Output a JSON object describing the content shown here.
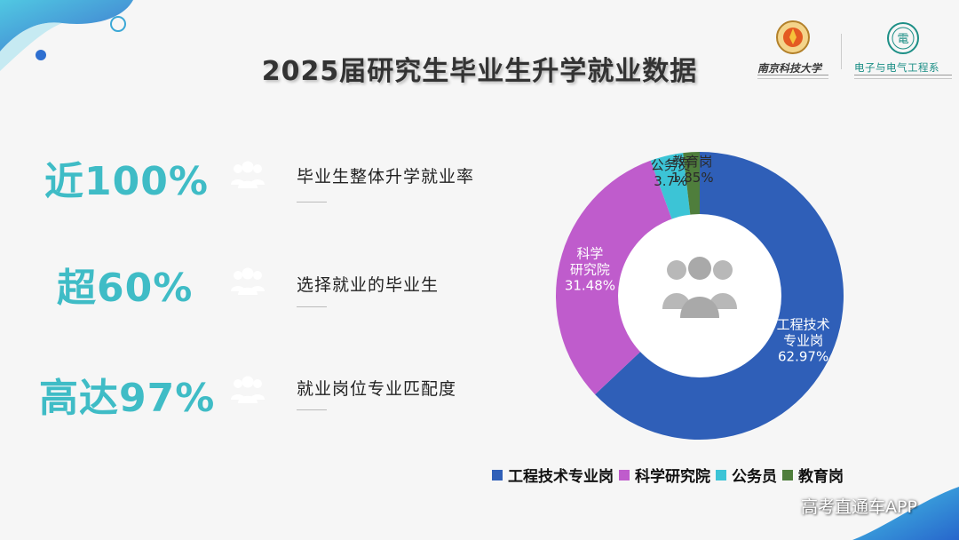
{
  "title": "2025届研究生毕业生升学就业数据",
  "logos": {
    "left": {
      "text": "南京科技大学"
    },
    "right": {
      "text": "电子与电气工程系"
    }
  },
  "stats": [
    {
      "value": "近100%",
      "label": "毕业生整体升学就业率",
      "color": "#2bb7c9",
      "icon": "people-icon"
    },
    {
      "value": "超60%",
      "label": "选择就业的毕业生",
      "color": "#2b73d9",
      "icon": "people-icon"
    },
    {
      "value": "高达97%",
      "label": "就业岗位专业匹配度",
      "color": "#b55ec8",
      "icon": "people-icon"
    }
  ],
  "chart_data": {
    "type": "pie",
    "donut": true,
    "center_icon": "people-icon",
    "series": [
      {
        "name": "工程技术专业岗",
        "value": 62.97,
        "color": "#2f5fb8",
        "label_lines": [
          "工程技术",
          "专业岗",
          "62.97%"
        ]
      },
      {
        "name": "科学研究院",
        "value": 31.48,
        "color": "#bf5ccc",
        "label_lines": [
          "科学",
          "研究院",
          "31.48%"
        ]
      },
      {
        "name": "公务员",
        "value": 3.7,
        "color": "#3cc4d6",
        "label_lines": [
          "公务员",
          "3.7%"
        ]
      },
      {
        "name": "教育岗",
        "value": 1.85,
        "color": "#4f7e3c",
        "label_lines": [
          "教育岗",
          "1.85%"
        ]
      }
    ],
    "legend_position": "bottom"
  },
  "watermark": "高考直通车APP"
}
